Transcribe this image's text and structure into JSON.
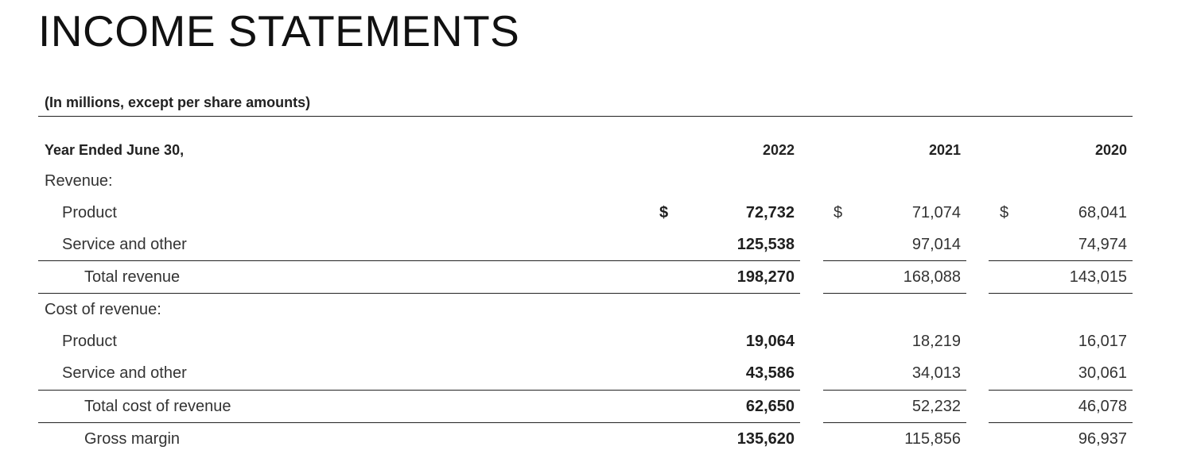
{
  "title": "INCOME STATEMENTS",
  "units_note": "(In millions, except per share amounts)",
  "header": {
    "label": "Year Ended June 30,",
    "years": [
      "2022",
      "2021",
      "2020"
    ]
  },
  "currency_symbol": "$",
  "rows": [
    {
      "label": "Revenue:",
      "values": [
        "",
        "",
        ""
      ]
    },
    {
      "label": "Product",
      "values": [
        "72,732",
        "71,074",
        "68,041"
      ]
    },
    {
      "label": "Service and other",
      "values": [
        "125,538",
        "97,014",
        "74,974"
      ]
    },
    {
      "label": "Total revenue",
      "values": [
        "198,270",
        "168,088",
        "143,015"
      ]
    },
    {
      "label": "Cost of revenue:",
      "values": [
        "",
        "",
        ""
      ]
    },
    {
      "label": "Product",
      "values": [
        "19,064",
        "18,219",
        "16,017"
      ]
    },
    {
      "label": "Service and other",
      "values": [
        "43,586",
        "34,013",
        "30,061"
      ]
    },
    {
      "label": "Total cost of revenue",
      "values": [
        "62,650",
        "52,232",
        "46,078"
      ]
    },
    {
      "label": "Gross margin",
      "values": [
        "135,620",
        "115,856",
        "96,937"
      ]
    }
  ]
}
